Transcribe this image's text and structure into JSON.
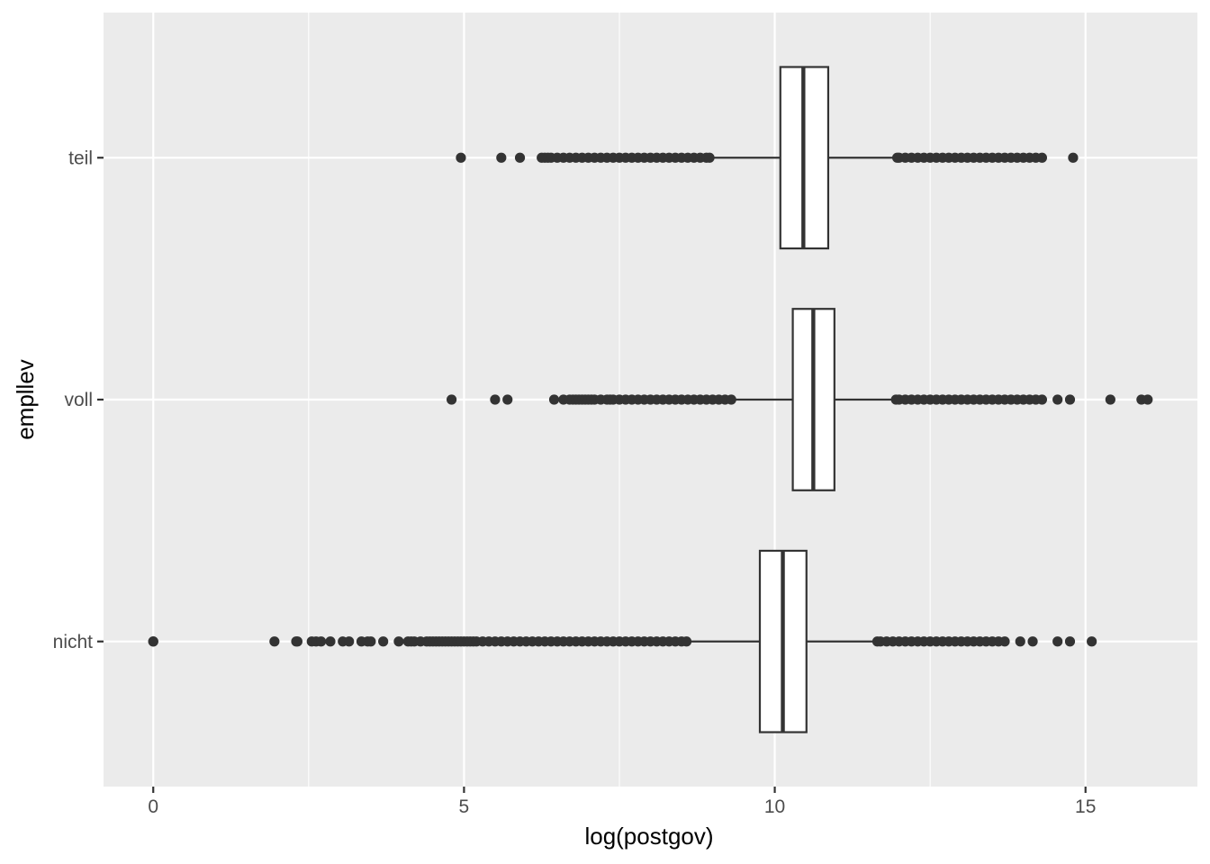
{
  "chart_data": {
    "type": "boxplot",
    "orientation": "horizontal",
    "xlabel": "log(postgov)",
    "ylabel": "empllev",
    "xlim": [
      -0.8,
      16.8
    ],
    "x_ticks": [
      0,
      5,
      10,
      15
    ],
    "x_tick_labels": [
      "0",
      "5",
      "10",
      "15"
    ],
    "grid": true,
    "categories": [
      "nicht",
      "voll",
      "teil"
    ],
    "boxes": [
      {
        "category": "nicht",
        "whisker_low": 8.63,
        "q1": 9.76,
        "median": 10.13,
        "q3": 10.51,
        "whisker_high": 11.65,
        "outliers_sampled": [
          0,
          0,
          1.95,
          2.3,
          2.32,
          2.55,
          2.62,
          2.7,
          2.85,
          3.05,
          3.15,
          3.35,
          3.45,
          3.5,
          3.7,
          3.95,
          4.1,
          4.15,
          4.2,
          4.3,
          4.4,
          4.45,
          4.5,
          4.55,
          4.6,
          4.65,
          4.7,
          4.75,
          4.8,
          4.85,
          4.9,
          4.95,
          5.0,
          5.05,
          5.1,
          5.15,
          5.2,
          5.3,
          5.4,
          5.5,
          5.6,
          5.7,
          5.8,
          5.9,
          6.0,
          6.1,
          6.2,
          6.3,
          6.4,
          6.5,
          6.6,
          6.7,
          6.8,
          6.9,
          7.0,
          7.1,
          7.2,
          7.3,
          7.4,
          7.5,
          7.6,
          7.7,
          7.8,
          7.9,
          8.0,
          8.1,
          8.2,
          8.3,
          8.4,
          8.5,
          8.58,
          11.65,
          11.7,
          11.8,
          11.9,
          12.0,
          12.1,
          12.2,
          12.3,
          12.4,
          12.5,
          12.6,
          12.7,
          12.8,
          12.9,
          13.0,
          13.1,
          13.2,
          13.3,
          13.4,
          13.5,
          13.6,
          13.7,
          13.95,
          14.15,
          14.55,
          14.75,
          15.1
        ]
      },
      {
        "category": "voll",
        "whisker_low": 9.33,
        "q1": 10.29,
        "median": 10.62,
        "q3": 10.96,
        "whisker_high": 11.95,
        "outliers_sampled": [
          4.8,
          5.5,
          5.7,
          6.45,
          6.6,
          6.7,
          6.75,
          6.8,
          6.85,
          6.9,
          6.95,
          7.0,
          7.05,
          7.1,
          7.2,
          7.3,
          7.35,
          7.4,
          7.5,
          7.6,
          7.7,
          7.8,
          7.9,
          8.0,
          8.1,
          8.2,
          8.3,
          8.4,
          8.5,
          8.6,
          8.7,
          8.8,
          8.9,
          9.0,
          9.1,
          9.2,
          9.3,
          11.95,
          12.0,
          12.1,
          12.2,
          12.3,
          12.4,
          12.5,
          12.6,
          12.7,
          12.8,
          12.9,
          13.0,
          13.1,
          13.2,
          13.3,
          13.4,
          13.5,
          13.6,
          13.7,
          13.8,
          13.9,
          14.0,
          14.1,
          14.2,
          14.3,
          14.55,
          14.75,
          15.4,
          15.9,
          16.0
        ]
      },
      {
        "category": "teil",
        "whisker_low": 8.98,
        "q1": 10.09,
        "median": 10.46,
        "q3": 10.86,
        "whisker_high": 11.97,
        "outliers_sampled": [
          4.95,
          5.6,
          5.9,
          6.25,
          6.3,
          6.35,
          6.4,
          6.5,
          6.6,
          6.7,
          6.8,
          6.9,
          7.0,
          7.1,
          7.2,
          7.3,
          7.4,
          7.5,
          7.6,
          7.7,
          7.8,
          7.9,
          8.0,
          8.1,
          8.2,
          8.3,
          8.4,
          8.5,
          8.6,
          8.7,
          8.8,
          8.9,
          8.95,
          11.97,
          12.0,
          12.1,
          12.2,
          12.3,
          12.4,
          12.5,
          12.6,
          12.7,
          12.8,
          12.9,
          13.0,
          13.1,
          13.2,
          13.3,
          13.4,
          13.5,
          13.6,
          13.7,
          13.8,
          13.9,
          14.0,
          14.1,
          14.2,
          14.3,
          14.8
        ]
      }
    ]
  },
  "colors": {
    "panel_background": "#ebebeb",
    "grid_major": "#ffffff",
    "box_fill": "#ffffff",
    "box_stroke": "#333333",
    "outlier": "#333333"
  }
}
